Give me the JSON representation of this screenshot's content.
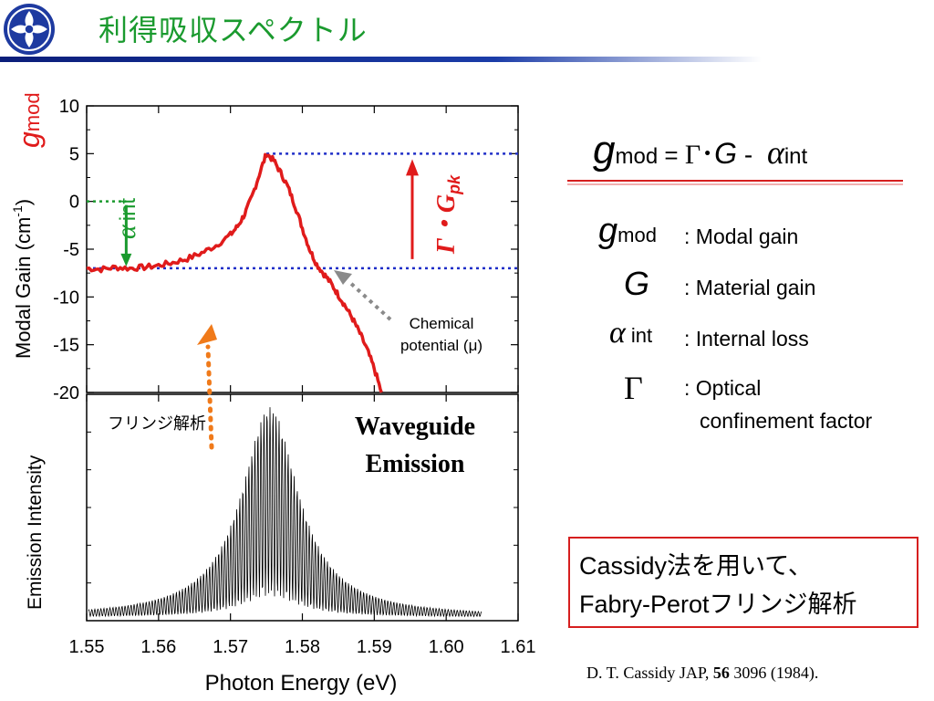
{
  "slide": {
    "title": "利得吸収スペクトル",
    "colors": {
      "accent_green": "#1a9a2e",
      "bar_blue": "#0b1e7a",
      "curve_red": "#e01b1b",
      "box_red": "#d61f1f",
      "arrow_orange": "#f07a1a",
      "dot_blue": "#1f2ec8",
      "arrow_gray": "#8a8a8a"
    }
  },
  "chart_data": [
    {
      "type": "line",
      "name": "gain-spectrum",
      "ylabel_text": "Modal Gain (cm",
      "ylabel_sup": "-1",
      "ylabel_close": ")",
      "yticks": [
        "10",
        "5",
        "0",
        "-5",
        "-10",
        "-15",
        "-20"
      ],
      "ylim": [
        -20,
        10
      ],
      "xlim": [
        1.55,
        1.61
      ],
      "gmod_label": "g",
      "gmod_sub": "mod",
      "series": [
        {
          "color": "#e01b1b",
          "x": [
            1.55,
            1.552,
            1.554,
            1.556,
            1.558,
            1.56,
            1.562,
            1.564,
            1.566,
            1.568,
            1.57,
            1.571,
            1.572,
            1.573,
            1.574,
            1.575,
            1.576,
            1.577,
            1.578,
            1.579,
            1.58,
            1.581,
            1.582,
            1.583,
            1.584,
            1.585,
            1.586,
            1.587,
            1.588,
            1.589,
            1.59,
            1.591
          ],
          "y": [
            -7.0,
            -7.1,
            -6.9,
            -7.0,
            -6.9,
            -6.7,
            -6.4,
            -6.0,
            -5.4,
            -4.6,
            -3.5,
            -2.6,
            -1.3,
            0.5,
            2.8,
            5.0,
            4.3,
            3.0,
            1.5,
            -0.5,
            -2.8,
            -5.0,
            -6.6,
            -7.6,
            -8.6,
            -9.8,
            -11.0,
            -12.3,
            -13.8,
            -15.5,
            -17.5,
            -20.0
          ]
        }
      ],
      "loss_level": -7.0,
      "peak_level": 5.0,
      "alpha_label": "α",
      "alpha_sub": "int",
      "gamma_label": "Γ・G",
      "gamma_sub": "pk",
      "chem_line1": "Chemical",
      "chem_line2": "potential (μ)"
    },
    {
      "type": "line",
      "name": "emission-spectrum",
      "ylabel": "Emission Intensity",
      "xlabel": "Photon Energy (eV)",
      "xticks": [
        "1.55",
        "1.56",
        "1.57",
        "1.58",
        "1.59",
        "1.60",
        "1.61"
      ],
      "xlim": [
        1.55,
        1.61
      ],
      "peak_x": 1.5755,
      "fringe_period": 0.00042,
      "fringe_label": "フリンジ解析",
      "annotation_line1": "Waveguide",
      "annotation_line2": "Emission"
    }
  ],
  "equation": {
    "g": "g",
    "mod": "mod",
    "eq": " = ",
    "gamma": "Γ",
    "dot": "･",
    "G": "G",
    "minus": " - ",
    "alpha": "α",
    "int": "int"
  },
  "legend": [
    {
      "sym": "g",
      "sub": "mod",
      "desc": ": Modal gain"
    },
    {
      "sym": "G",
      "sub": "",
      "desc": ": Material gain"
    },
    {
      "sym": "α",
      "sub": "int",
      "desc": ": Internal loss"
    },
    {
      "sym": "Γ",
      "sub": "",
      "desc": ": Optical",
      "desc2": "confinement factor"
    }
  ],
  "method_box": {
    "line1": "Cassidy法を用いて、",
    "line2": "Fabry-Perotフリンジ解析"
  },
  "citation": {
    "pre": "D. T. Cassidy  JAP, ",
    "vol": "56",
    "post": " 3096 (1984)."
  }
}
